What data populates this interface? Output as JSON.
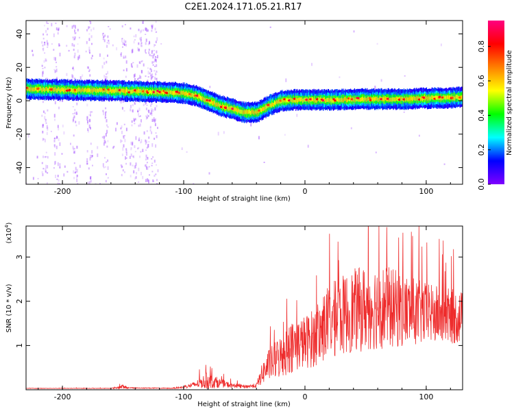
{
  "title": "C2E1.2024.171.05.21.R17",
  "chart_data": [
    {
      "type": "heatmap",
      "xlabel": "Height of straight line (km)",
      "ylabel": "Frequency (Hz)",
      "xlim": [
        -230,
        130
      ],
      "ylim": [
        -50,
        48
      ],
      "x_ticks": [
        -200,
        -100,
        0,
        100
      ],
      "x_tick_labels": [
        "-200",
        "-100",
        "0",
        "100"
      ],
      "y_ticks": [
        -40,
        -20,
        0,
        20,
        40
      ],
      "y_tick_labels": [
        "-40",
        "-20",
        "0",
        "20",
        "40"
      ],
      "colorbar": {
        "label": "Normalized spectral amplitude",
        "range": [
          0,
          0.95
        ],
        "ticks": [
          0.0,
          0.2,
          0.4,
          0.6,
          0.8
        ],
        "tick_labels": [
          "0.0",
          "0.2",
          "0.4",
          "0.6",
          "0.8"
        ],
        "colormap": [
          "#8000ff",
          "#0000ff",
          "#00ffff",
          "#00ff00",
          "#ffff00",
          "#ff8000",
          "#ff0000",
          "#ff0080"
        ]
      },
      "ridge": {
        "x": [
          -230,
          -200,
          -160,
          -130,
          -110,
          -100,
          -90,
          -80,
          -70,
          -60,
          -50,
          -40,
          -30,
          -20,
          -10,
          0,
          20,
          50,
          80,
          100,
          130
        ],
        "freq": [
          7,
          6.5,
          6,
          5.5,
          5,
          4.5,
          3,
          0,
          -3,
          -5,
          -7,
          -7,
          -3,
          0,
          0.5,
          0.5,
          0.5,
          1,
          1,
          1.5,
          2
        ]
      }
    },
    {
      "type": "line",
      "xlabel": "Height of straight line (km)",
      "ylabel": "SNR (10 * v/v)",
      "y_multiplier_label": "(x10",
      "y_multiplier_exp": "4",
      "xlim": [
        -230,
        130
      ],
      "ylim": [
        0,
        3.7
      ],
      "x_ticks": [
        -200,
        -100,
        0,
        100
      ],
      "x_tick_labels": [
        "-200",
        "-100",
        "0",
        "100"
      ],
      "y_ticks": [
        1,
        2,
        3
      ],
      "y_tick_labels": [
        "1",
        "2",
        "3"
      ],
      "line_color": "#ee2b2b",
      "envelope": {
        "x": [
          -230,
          -160,
          -150,
          -145,
          -110,
          -100,
          -90,
          -80,
          -70,
          -60,
          -50,
          -40,
          -35,
          -30,
          -20,
          -10,
          0,
          10,
          20,
          40,
          60,
          80,
          100,
          130
        ],
        "base": [
          0.03,
          0.03,
          0.05,
          0.04,
          0.03,
          0.05,
          0.1,
          0.15,
          0.12,
          0.08,
          0.06,
          0.08,
          0.3,
          0.45,
          0.6,
          0.8,
          0.9,
          1.0,
          1.3,
          1.5,
          1.6,
          1.55,
          1.5,
          1.45
        ],
        "amp": [
          0.01,
          0.01,
          0.1,
          0.02,
          0.02,
          0.05,
          0.15,
          0.4,
          0.2,
          0.1,
          0.08,
          0.1,
          0.5,
          0.7,
          1.0,
          1.2,
          1.2,
          1.4,
          1.7,
          1.9,
          2.0,
          1.7,
          1.4,
          1.2
        ]
      }
    }
  ]
}
